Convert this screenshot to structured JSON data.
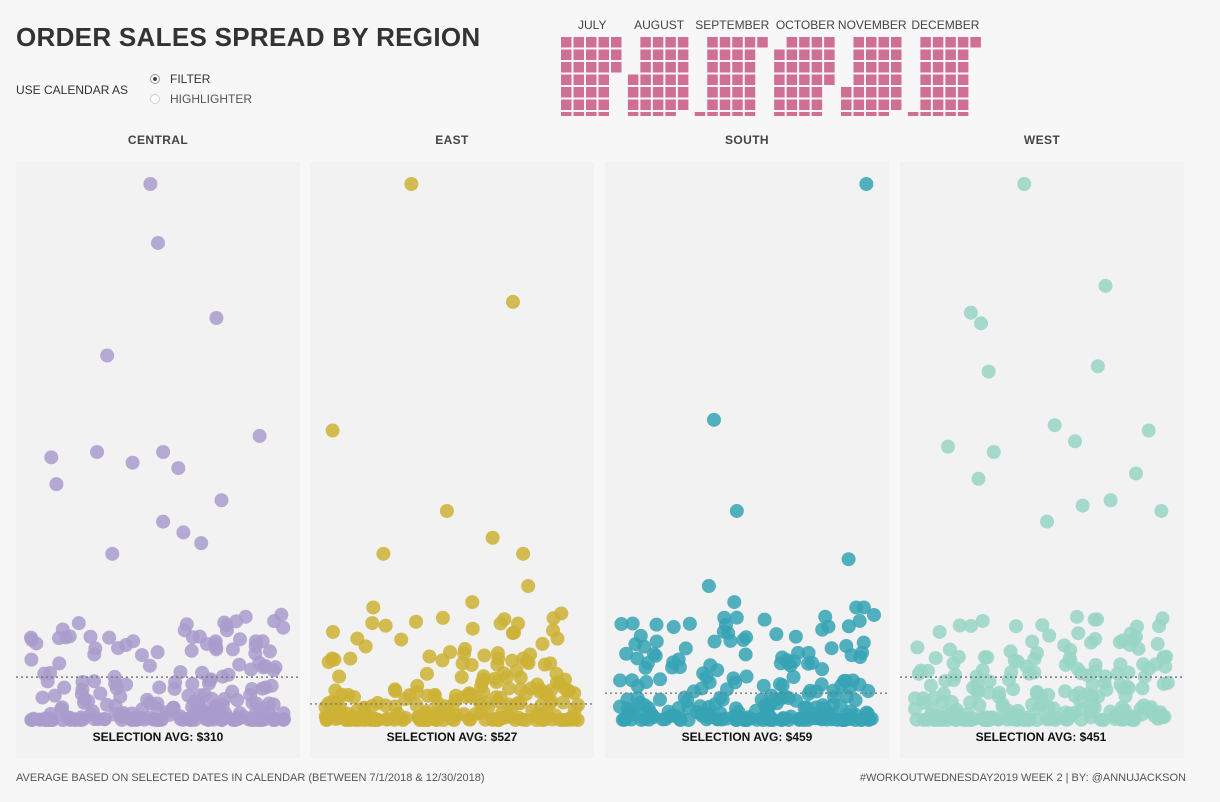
{
  "header": {
    "title": "ORDER SALES SPREAD BY REGION",
    "calendar_control_label": "USE CALENDAR AS",
    "options": [
      {
        "label": "FILTER",
        "selected": true
      },
      {
        "label": "HIGHLIGHTER",
        "selected": false
      }
    ]
  },
  "calendar": {
    "months": [
      "JULY",
      "AUGUST",
      "SEPTEMBER",
      "OCTOBER",
      "NOVEMBER",
      "DECEMBER"
    ],
    "color": "#cf6f93"
  },
  "footer": {
    "left": "AVERAGE BASED ON SELECTED DATES IN CALENDAR (BETWEEN 7/1/2018 & 12/30/2018)",
    "right": "#WORKOUTWEDNESDAY2019 WEEK 2 | BY: @ANNUJACKSON"
  },
  "chart_data": {
    "type": "scatter",
    "regions": [
      {
        "name": "CENTRAL",
        "color": "#a99ccd",
        "avg_label": "SELECTION AVG: $310",
        "avg": 310,
        "avg_rank": 0.08,
        "outliers": [
          [
            0.47,
            1.0
          ],
          [
            0.5,
            0.89
          ],
          [
            0.73,
            0.75
          ],
          [
            0.3,
            0.68
          ],
          [
            0.9,
            0.53
          ],
          [
            0.26,
            0.5
          ],
          [
            0.08,
            0.49
          ],
          [
            0.52,
            0.5
          ],
          [
            0.4,
            0.48
          ],
          [
            0.58,
            0.47
          ],
          [
            0.1,
            0.44
          ],
          [
            0.75,
            0.41
          ],
          [
            0.52,
            0.37
          ],
          [
            0.6,
            0.35
          ],
          [
            0.67,
            0.33
          ],
          [
            0.32,
            0.31
          ]
        ]
      },
      {
        "name": "EAST",
        "color": "#cdb135",
        "avg_label": "SELECTION AVG: $527",
        "avg": 527,
        "avg_rank": 0.03,
        "outliers": [
          [
            0.34,
            1.0
          ],
          [
            0.74,
            0.78
          ],
          [
            0.03,
            0.54
          ],
          [
            0.48,
            0.39
          ],
          [
            0.23,
            0.31
          ],
          [
            0.66,
            0.34
          ],
          [
            0.78,
            0.31
          ],
          [
            0.8,
            0.25
          ],
          [
            0.19,
            0.21
          ],
          [
            0.58,
            0.22
          ],
          [
            0.9,
            0.19
          ],
          [
            0.3,
            0.15
          ],
          [
            0.76,
            0.18
          ]
        ]
      },
      {
        "name": "SOUTH",
        "color": "#36a3b5",
        "avg_label": "SELECTION AVG: $459",
        "avg": 459,
        "avg_rank": 0.05,
        "outliers": [
          [
            0.97,
            1.0
          ],
          [
            0.37,
            0.56
          ],
          [
            0.46,
            0.39
          ],
          [
            0.35,
            0.25
          ],
          [
            0.45,
            0.22
          ],
          [
            0.9,
            0.3
          ],
          [
            0.05,
            0.18
          ],
          [
            0.96,
            0.21
          ],
          [
            0.93,
            0.21
          ]
        ]
      },
      {
        "name": "WEST",
        "color": "#98d5c4",
        "avg_label": "SELECTION AVG: $451",
        "avg": 451,
        "avg_rank": 0.08,
        "outliers": [
          [
            0.43,
            1.0
          ],
          [
            0.75,
            0.81
          ],
          [
            0.22,
            0.76
          ],
          [
            0.26,
            0.74
          ],
          [
            0.72,
            0.66
          ],
          [
            0.29,
            0.65
          ],
          [
            0.55,
            0.55
          ],
          [
            0.92,
            0.54
          ],
          [
            0.31,
            0.5
          ],
          [
            0.63,
            0.52
          ],
          [
            0.13,
            0.51
          ],
          [
            0.87,
            0.46
          ],
          [
            0.25,
            0.45
          ],
          [
            0.77,
            0.41
          ],
          [
            0.52,
            0.37
          ],
          [
            0.66,
            0.4
          ],
          [
            0.97,
            0.39
          ]
        ]
      }
    ]
  }
}
